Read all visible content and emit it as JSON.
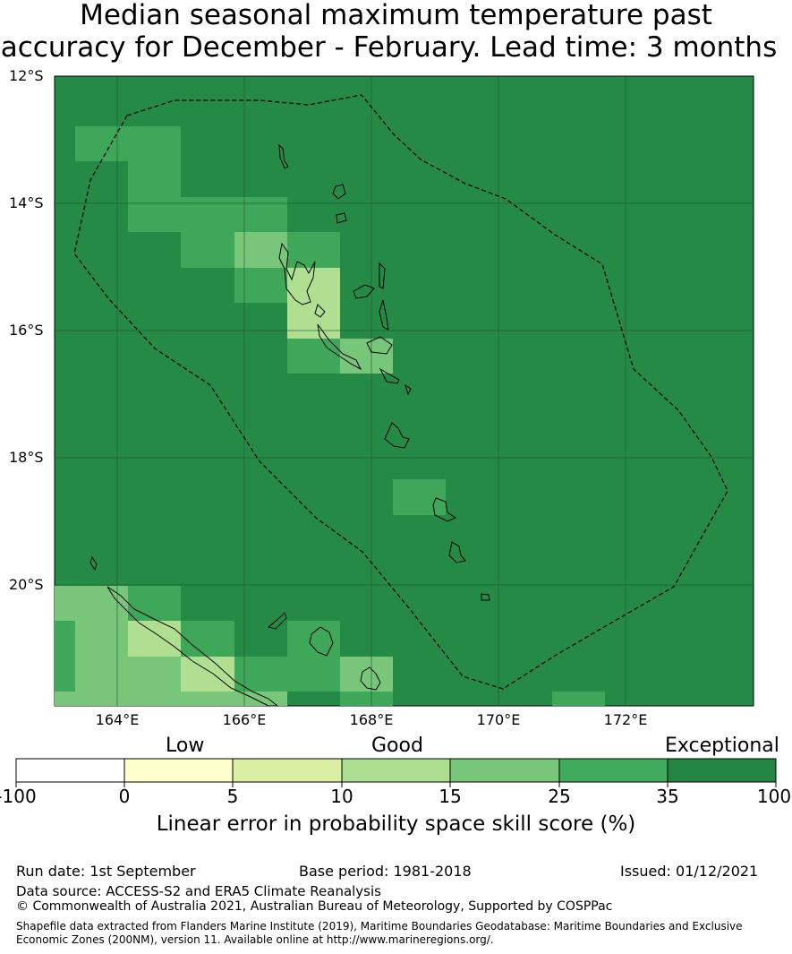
{
  "title": {
    "line1": "Median seasonal maximum temperature past",
    "line2": "accuracy for December - February. Lead time: 3 months"
  },
  "map": {
    "lat_labels": [
      "12°S",
      "14°S",
      "16°S",
      "18°S",
      "20°S"
    ],
    "lon_labels": [
      "164°E",
      "166°E",
      "168°E",
      "170°E",
      "172°E"
    ],
    "region": "Vanuatu",
    "boundary_style": "dashed EEZ outline",
    "background_category": "Exceptional (35-100)"
  },
  "colorbar": {
    "categories": [
      "Low",
      "Good",
      "Exceptional"
    ],
    "ticks": [
      "-100",
      "0",
      "5",
      "10",
      "15",
      "25",
      "35",
      "100"
    ],
    "colors": [
      "#ffffff",
      "#ffffcc",
      "#d9f0a3",
      "#addd8e",
      "#78c679",
      "#41ab5d",
      "#238443"
    ],
    "title": "Linear error in probability space skill score (%)"
  },
  "footer": {
    "run_date": "Run date: 1st September",
    "base_period": "Base period: 1981-2018",
    "issued": "Issued: 01/12/2021",
    "data_source": "Data source: ACCESS-S2 and ERA5 Climate Reanalysis",
    "copyright": "© Commonwealth of Australia 2021, Australian Bureau of Meteorology, Supported by COSPPac",
    "shapefile_line1": "Shapefile data extracted from Flanders Marine Institute (2019), Maritime Boundaries Geodatabase: Maritime Boundaries and Exclusive",
    "shapefile_line2": "Economic Zones (200NM), version 11. Available online at http://www.marineregions.org/."
  }
}
